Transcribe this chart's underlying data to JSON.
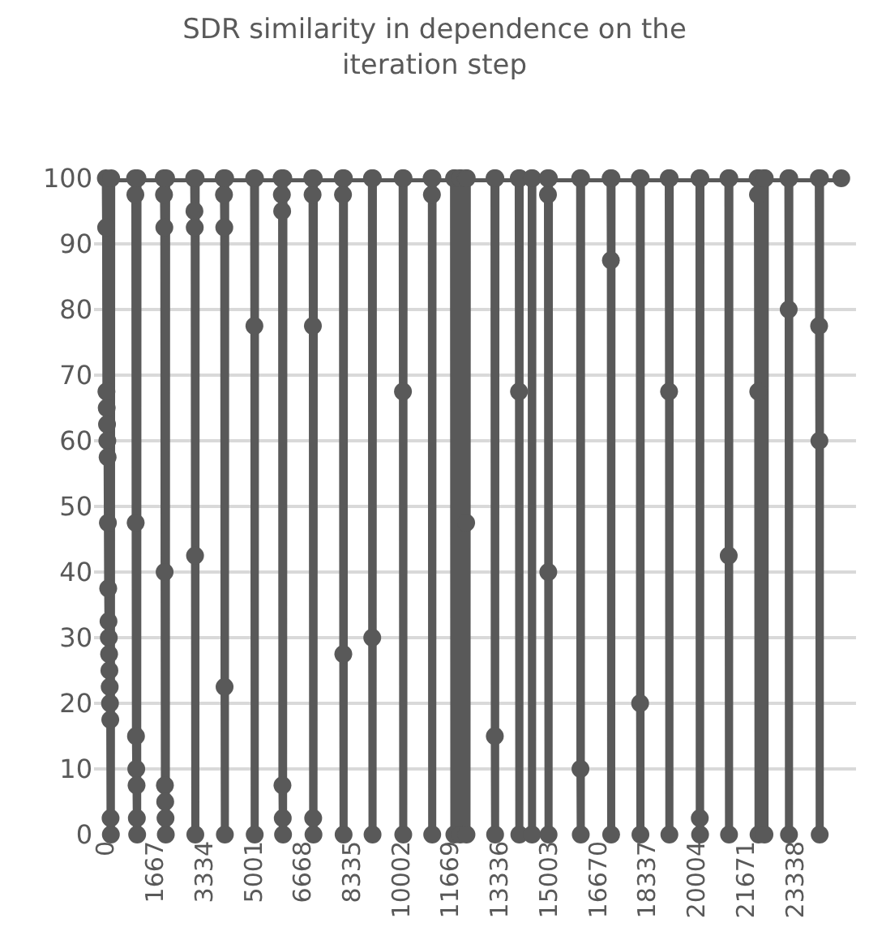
{
  "chart_data": {
    "type": "line",
    "title": "SDR similarity in dependence on the iteration step",
    "x": [
      0,
      10,
      20,
      30,
      40,
      50,
      60,
      70,
      80,
      90,
      100,
      110,
      120,
      130,
      140,
      150,
      160,
      170,
      180,
      990,
      1000,
      1010,
      1020,
      1030,
      1040,
      1050,
      1060,
      1070,
      1960,
      1970,
      1980,
      1990,
      2000,
      2010,
      2020,
      2030,
      2040,
      2990,
      3000,
      3010,
      3020,
      3030,
      3040,
      3990,
      4000,
      4010,
      4020,
      4030,
      4040,
      5020,
      5030,
      5040,
      5050,
      5950,
      5960,
      5970,
      5980,
      5990,
      6000,
      6010,
      6990,
      7000,
      7010,
      7020,
      7030,
      7040,
      8020,
      8030,
      8040,
      8050,
      8060,
      9010,
      9020,
      9030,
      9040,
      10050,
      10060,
      10070,
      10080,
      11030,
      11040,
      11050,
      11060,
      11790,
      11800,
      11810,
      11990,
      12000,
      12010,
      12190,
      12200,
      12210,
      12220,
      13160,
      13170,
      13180,
      13190,
      13980,
      13990,
      14000,
      14010,
      14420,
      14430,
      14440,
      14960,
      14970,
      14980,
      14990,
      15000,
      16060,
      16070,
      16080,
      16090,
      17090,
      17100,
      17110,
      17120,
      18080,
      18090,
      18100,
      18110,
      19060,
      19070,
      19080,
      19090,
      20100,
      20110,
      20120,
      20130,
      21080,
      21090,
      21100,
      21110,
      22070,
      22080,
      22090,
      22100,
      22110,
      22290,
      22300,
      22310,
      23110,
      23120,
      23130,
      23140,
      24140,
      24150,
      24160,
      24170,
      24180,
      24900
    ],
    "series": [
      {
        "color": "#595959",
        "values": [
          100,
          92.5,
          67.5,
          65,
          62.5,
          60,
          57.5,
          47.5,
          37.5,
          32.5,
          30,
          27.5,
          25,
          22.5,
          20,
          17.5,
          2.5,
          0,
          100,
          100,
          97.5,
          47.5,
          15,
          10,
          7.5,
          2.5,
          0,
          100,
          100,
          97.5,
          92.5,
          40,
          7.5,
          5,
          2.5,
          0,
          100,
          100,
          95,
          92.5,
          42.5,
          0,
          100,
          100,
          97.5,
          92.5,
          22.5,
          0,
          100,
          100,
          77.5,
          0,
          100,
          100,
          97.5,
          95,
          7.5,
          2.5,
          0,
          100,
          100,
          97.5,
          77.5,
          2.5,
          0,
          100,
          100,
          97.5,
          27.5,
          0,
          100,
          100,
          30,
          0,
          100,
          100,
          67.5,
          0,
          100,
          100,
          97.5,
          0,
          100,
          100,
          0,
          100,
          100,
          0,
          100,
          100,
          47.5,
          0,
          100,
          100,
          15,
          0,
          100,
          100,
          67.5,
          0,
          100,
          100,
          0,
          100,
          100,
          97.5,
          40,
          0,
          100,
          100,
          10,
          0,
          100,
          100,
          87.5,
          0,
          100,
          100,
          20,
          0,
          100,
          100,
          67.5,
          0,
          100,
          100,
          2.5,
          0,
          100,
          100,
          42.5,
          0,
          100,
          100,
          97.5,
          67.5,
          0,
          100,
          100,
          0,
          100,
          100,
          80,
          0,
          100,
          100,
          77.5,
          60,
          0,
          100,
          100
        ]
      }
    ],
    "xlim": [
      -400,
      25400
    ],
    "xticks": [
      0,
      1667,
      3334,
      5001,
      6668,
      8335,
      10002,
      11669,
      13336,
      15003,
      16670,
      18337,
      20004,
      21671,
      23338
    ],
    "ylim": [
      0,
      100
    ],
    "yticks": [
      0,
      10,
      20,
      30,
      40,
      50,
      60,
      70,
      80,
      90,
      100
    ],
    "grid": "y",
    "marker": "circle",
    "line_style": "solid"
  }
}
